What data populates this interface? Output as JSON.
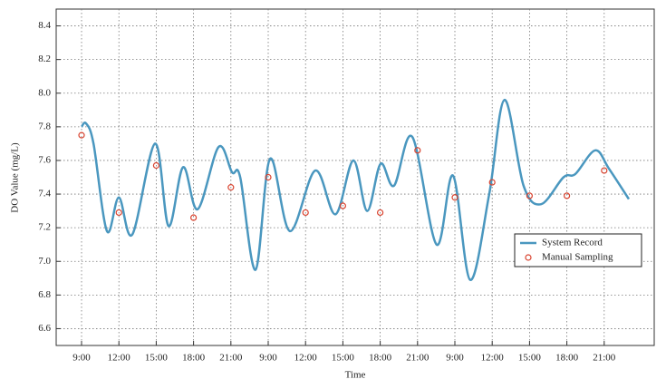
{
  "chart_data": {
    "type": "line",
    "x_label": "Time",
    "y_label": "DO Value (mg/L)",
    "xlim": [
      -0.68,
      15.34
    ],
    "ylim": [
      6.5,
      8.5
    ],
    "xticks": [
      {
        "value": 0,
        "label": "9:00"
      },
      {
        "value": 1,
        "label": "12:00"
      },
      {
        "value": 2,
        "label": "15:00"
      },
      {
        "value": 3,
        "label": "18:00"
      },
      {
        "value": 4,
        "label": "21:00"
      },
      {
        "value": 5,
        "label": "9:00"
      },
      {
        "value": 6,
        "label": "12:00"
      },
      {
        "value": 7,
        "label": "15:00"
      },
      {
        "value": 8,
        "label": "18:00"
      },
      {
        "value": 9,
        "label": "21:00"
      },
      {
        "value": 10,
        "label": "9:00"
      },
      {
        "value": 11,
        "label": "12:00"
      },
      {
        "value": 12,
        "label": "15:00"
      },
      {
        "value": 13,
        "label": "18:00"
      },
      {
        "value": 14,
        "label": "21:00"
      }
    ],
    "yticks": [
      6.6,
      6.8,
      {
        "value": 7,
        "label": "7.0"
      },
      7.2,
      7.4,
      7.6,
      7.8,
      {
        "value": 8,
        "label": "8.0"
      },
      8.2,
      8.4
    ],
    "grid": true,
    "legend": "lower right",
    "series": [
      {
        "name": "System Record",
        "color": "#4a97bf",
        "style": "line",
        "x": [
          0,
          0.12,
          0.32,
          0.68,
          1.0,
          1.36,
          1.97,
          2.33,
          2.72,
          3.11,
          3.67,
          4.03,
          4.25,
          4.66,
          5.05,
          5.58,
          6.26,
          6.8,
          7.28,
          7.65,
          8.01,
          8.37,
          8.86,
          9.51,
          9.95,
          10.41,
          10.92,
          11.33,
          11.84,
          12.31,
          12.91,
          13.23,
          13.76,
          14.13,
          14.66
        ],
        "values": [
          7.8,
          7.82,
          7.7,
          7.18,
          7.38,
          7.16,
          7.7,
          7.21,
          7.56,
          7.31,
          7.68,
          7.53,
          7.5,
          6.95,
          7.61,
          7.18,
          7.54,
          7.28,
          7.6,
          7.3,
          7.58,
          7.45,
          7.74,
          7.1,
          7.51,
          6.89,
          7.4,
          7.96,
          7.45,
          7.34,
          7.5,
          7.52,
          7.66,
          7.55,
          7.37
        ]
      },
      {
        "name": "Manual Sampling",
        "color": "#d9432f",
        "style": "marker",
        "x": [
          0,
          1,
          2,
          3,
          4,
          5,
          6,
          7,
          8,
          9,
          10,
          11,
          12,
          13,
          14
        ],
        "values": [
          7.75,
          7.29,
          7.57,
          7.26,
          7.44,
          7.5,
          7.29,
          7.33,
          7.29,
          7.66,
          7.38,
          7.47,
          7.39,
          7.39,
          7.54
        ]
      }
    ]
  }
}
